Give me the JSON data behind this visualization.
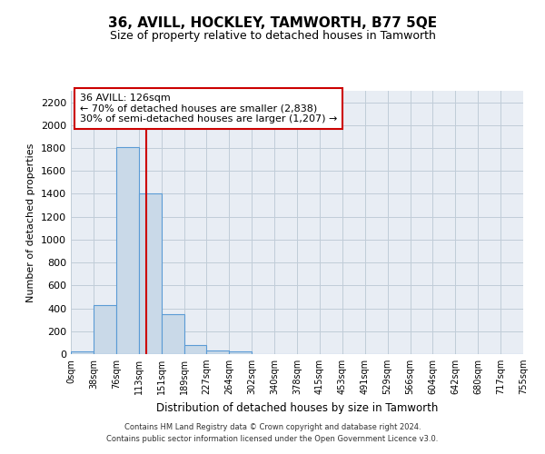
{
  "title": "36, AVILL, HOCKLEY, TAMWORTH, B77 5QE",
  "subtitle": "Size of property relative to detached houses in Tamworth",
  "xlabel": "Distribution of detached houses by size in Tamworth",
  "ylabel": "Number of detached properties",
  "bin_labels": [
    "0sqm",
    "38sqm",
    "76sqm",
    "113sqm",
    "151sqm",
    "189sqm",
    "227sqm",
    "264sqm",
    "302sqm",
    "340sqm",
    "378sqm",
    "415sqm",
    "453sqm",
    "491sqm",
    "529sqm",
    "566sqm",
    "604sqm",
    "642sqm",
    "680sqm",
    "717sqm",
    "755sqm"
  ],
  "bar_values": [
    20,
    430,
    1810,
    1400,
    350,
    80,
    35,
    20,
    0,
    0,
    0,
    0,
    0,
    0,
    0,
    0,
    0,
    0,
    0,
    0
  ],
  "bar_color": "#c9d9e8",
  "bar_edge_color": "#5b9bd5",
  "grid_color": "#c0ccd8",
  "bg_color": "#e8edf4",
  "vline_x": 126,
  "bin_width": 38,
  "annotation_line1": "36 AVILL: 126sqm",
  "annotation_line2": "← 70% of detached houses are smaller (2,838)",
  "annotation_line3": "30% of semi-detached houses are larger (1,207) →",
  "annotation_box_color": "#ffffff",
  "annotation_box_edge": "#cc0000",
  "vline_color": "#cc0000",
  "ylim": [
    0,
    2300
  ],
  "yticks": [
    0,
    200,
    400,
    600,
    800,
    1000,
    1200,
    1400,
    1600,
    1800,
    2000,
    2200
  ],
  "footer_line1": "Contains HM Land Registry data © Crown copyright and database right 2024.",
  "footer_line2": "Contains public sector information licensed under the Open Government Licence v3.0."
}
